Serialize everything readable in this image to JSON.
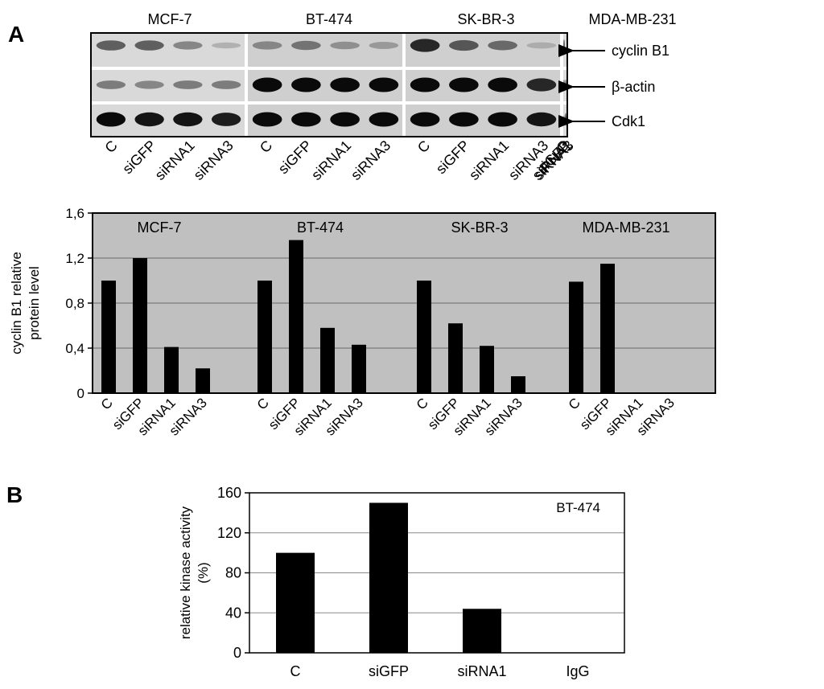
{
  "panels": {
    "a": "A",
    "b": "B"
  },
  "blot": {
    "cell_lines": [
      "MCF-7",
      "BT-474",
      "SK-BR-3",
      "MDA-MB-231"
    ],
    "lane_labels": [
      "C",
      "siGFP",
      "siRNA1",
      "siRNA3"
    ],
    "proteins": [
      "cyclin B1",
      "β-actin",
      "Cdk1"
    ],
    "band_colors": {
      "light": "#d9d9d9",
      "dark": "#cfcfcf",
      "band": "#111111"
    }
  },
  "chart_data": [
    {
      "type": "bar",
      "panel": "A",
      "ylabel": [
        "cyclin B1 relative",
        "protein level"
      ],
      "ylim": [
        0,
        1.6
      ],
      "yticks": [
        0,
        0.4,
        0.8,
        1.2,
        1.6
      ],
      "ytick_labels": [
        "0",
        "0,4",
        "0,8",
        "1,2",
        "1,6"
      ],
      "grid": true,
      "background": "#c0c0c0",
      "bar_color": "#000000",
      "categories": [
        "C",
        "siGFP",
        "siRNA1",
        "siRNA3"
      ],
      "groups": [
        {
          "name": "MCF-7",
          "values": [
            1.0,
            1.2,
            0.41,
            0.22
          ]
        },
        {
          "name": "BT-474",
          "values": [
            1.0,
            1.36,
            0.58,
            0.43
          ]
        },
        {
          "name": "SK-BR-3",
          "values": [
            1.0,
            0.62,
            0.42,
            0.15
          ]
        },
        {
          "name": "MDA-MB-231",
          "values": [
            0.99,
            1.15,
            0.0,
            0.0
          ]
        }
      ]
    },
    {
      "type": "bar",
      "panel": "B",
      "ylabel": [
        "relative kinase activity",
        "(%)"
      ],
      "ylim": [
        0,
        160
      ],
      "yticks": [
        0,
        40,
        80,
        120,
        160
      ],
      "ytick_labels": [
        "0",
        "40",
        "80",
        "120",
        "160"
      ],
      "grid": true,
      "bar_color": "#000000",
      "annotation": "BT-474",
      "categories": [
        "C",
        "siGFP",
        "siRNA1",
        "IgG"
      ],
      "values": [
        100,
        150,
        44,
        0
      ]
    }
  ]
}
